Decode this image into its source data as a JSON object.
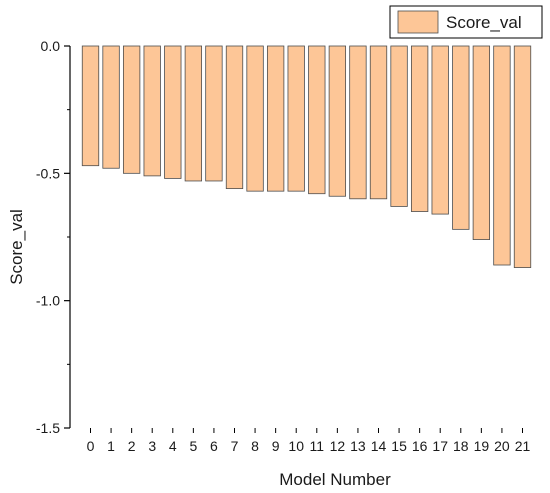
{
  "chart_data": {
    "type": "bar",
    "title": "",
    "xlabel": "Model Number",
    "ylabel": "Score_val",
    "categories": [
      "0",
      "1",
      "2",
      "3",
      "4",
      "5",
      "6",
      "7",
      "8",
      "9",
      "10",
      "11",
      "12",
      "13",
      "14",
      "15",
      "16",
      "17",
      "18",
      "19",
      "20",
      "21"
    ],
    "series": [
      {
        "name": "Score_val",
        "values": [
          -0.47,
          -0.48,
          -0.5,
          -0.51,
          -0.52,
          -0.53,
          -0.53,
          -0.56,
          -0.57,
          -0.57,
          -0.57,
          -0.58,
          -0.59,
          -0.6,
          -0.6,
          -0.63,
          -0.65,
          -0.66,
          -0.72,
          -0.76,
          -0.86,
          -0.87
        ]
      }
    ],
    "ylim": [
      -1.5,
      0.0
    ],
    "yticks": [
      "0.0",
      "-0.5",
      "-1.0",
      "-1.5"
    ],
    "ytick_values": [
      0.0,
      -0.5,
      -1.0,
      -1.5
    ],
    "grid": false,
    "legend_position": "top-right",
    "colors": {
      "bar_fill": "#FDC697",
      "bar_stroke": "#4d4d4d",
      "axis": "#000000"
    }
  }
}
